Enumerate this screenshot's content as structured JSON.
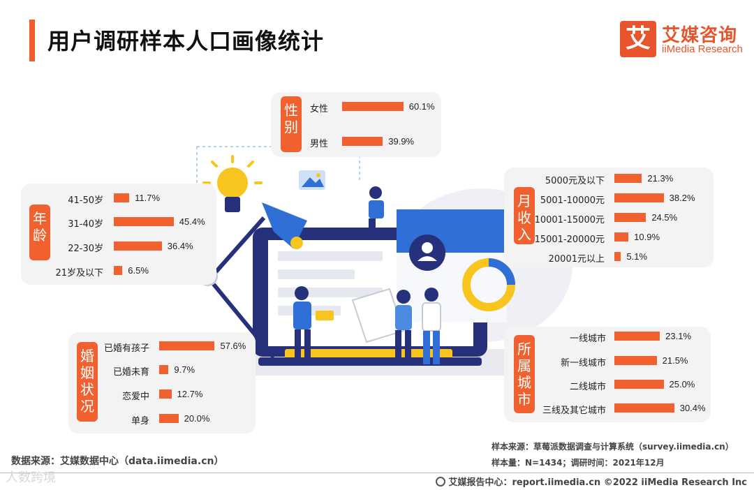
{
  "header": {
    "title": "用户调研样本人口画像统计",
    "logo_mark": "艾",
    "logo_cn": "艾媒咨询",
    "logo_en": "iiMedia Research"
  },
  "colors": {
    "accent": "#f0612f",
    "panel_bg": "#f3f3f3",
    "illustration_blue": "#2f6fd6",
    "illustration_navy": "#27307a",
    "illustration_yellow": "#f7c51e"
  },
  "chart_data": [
    {
      "type": "bar",
      "title": "性别",
      "categories": [
        "女性",
        "男性"
      ],
      "values": [
        60.1,
        39.9
      ],
      "value_labels": [
        "60.1%",
        "39.9%"
      ]
    },
    {
      "type": "bar",
      "title": "年龄",
      "categories": [
        "41-50岁",
        "31-40岁",
        "22-30岁",
        "21岁及以下"
      ],
      "values": [
        11.7,
        45.4,
        36.4,
        6.5
      ],
      "value_labels": [
        "11.7%",
        "45.4%",
        "36.4%",
        "6.5%"
      ]
    },
    {
      "type": "bar",
      "title": "婚姻状况",
      "categories": [
        "已婚有孩子",
        "已婚未育",
        "恋爱中",
        "单身"
      ],
      "values": [
        57.6,
        9.7,
        12.7,
        20.0
      ],
      "value_labels": [
        "57.6%",
        "9.7%",
        "12.7%",
        "20.0%"
      ]
    },
    {
      "type": "bar",
      "title": "月收入",
      "categories": [
        "5000元及以下",
        "5001-10000元",
        "10001-15000元",
        "15001-20000元",
        "20001元以上"
      ],
      "values": [
        21.3,
        38.2,
        24.5,
        10.9,
        5.1
      ],
      "value_labels": [
        "21.3%",
        "38.2%",
        "24.5%",
        "10.9%",
        "5.1%"
      ]
    },
    {
      "type": "bar",
      "title": "所属城市",
      "categories": [
        "一线城市",
        "新一线城市",
        "二线城市",
        "三线及其它城市"
      ],
      "values": [
        23.1,
        21.5,
        25.0,
        30.4
      ],
      "value_labels": [
        "23.1%",
        "21.5%",
        "25.0%",
        "30.4%"
      ]
    }
  ],
  "footer": {
    "source": "数据来源：艾媒数据中心（data.iimedia.cn）",
    "sample_source": "样本来源：草莓派数据调查与计算系统（survey.iimedia.cn）",
    "sample_size": "样本量：N=1434；调研时间：2021年12月",
    "report_center": "艾媒报告中心：report.iimedia.cn  ©2022  iiMedia Research  Inc",
    "watermark": "人数跨境"
  }
}
